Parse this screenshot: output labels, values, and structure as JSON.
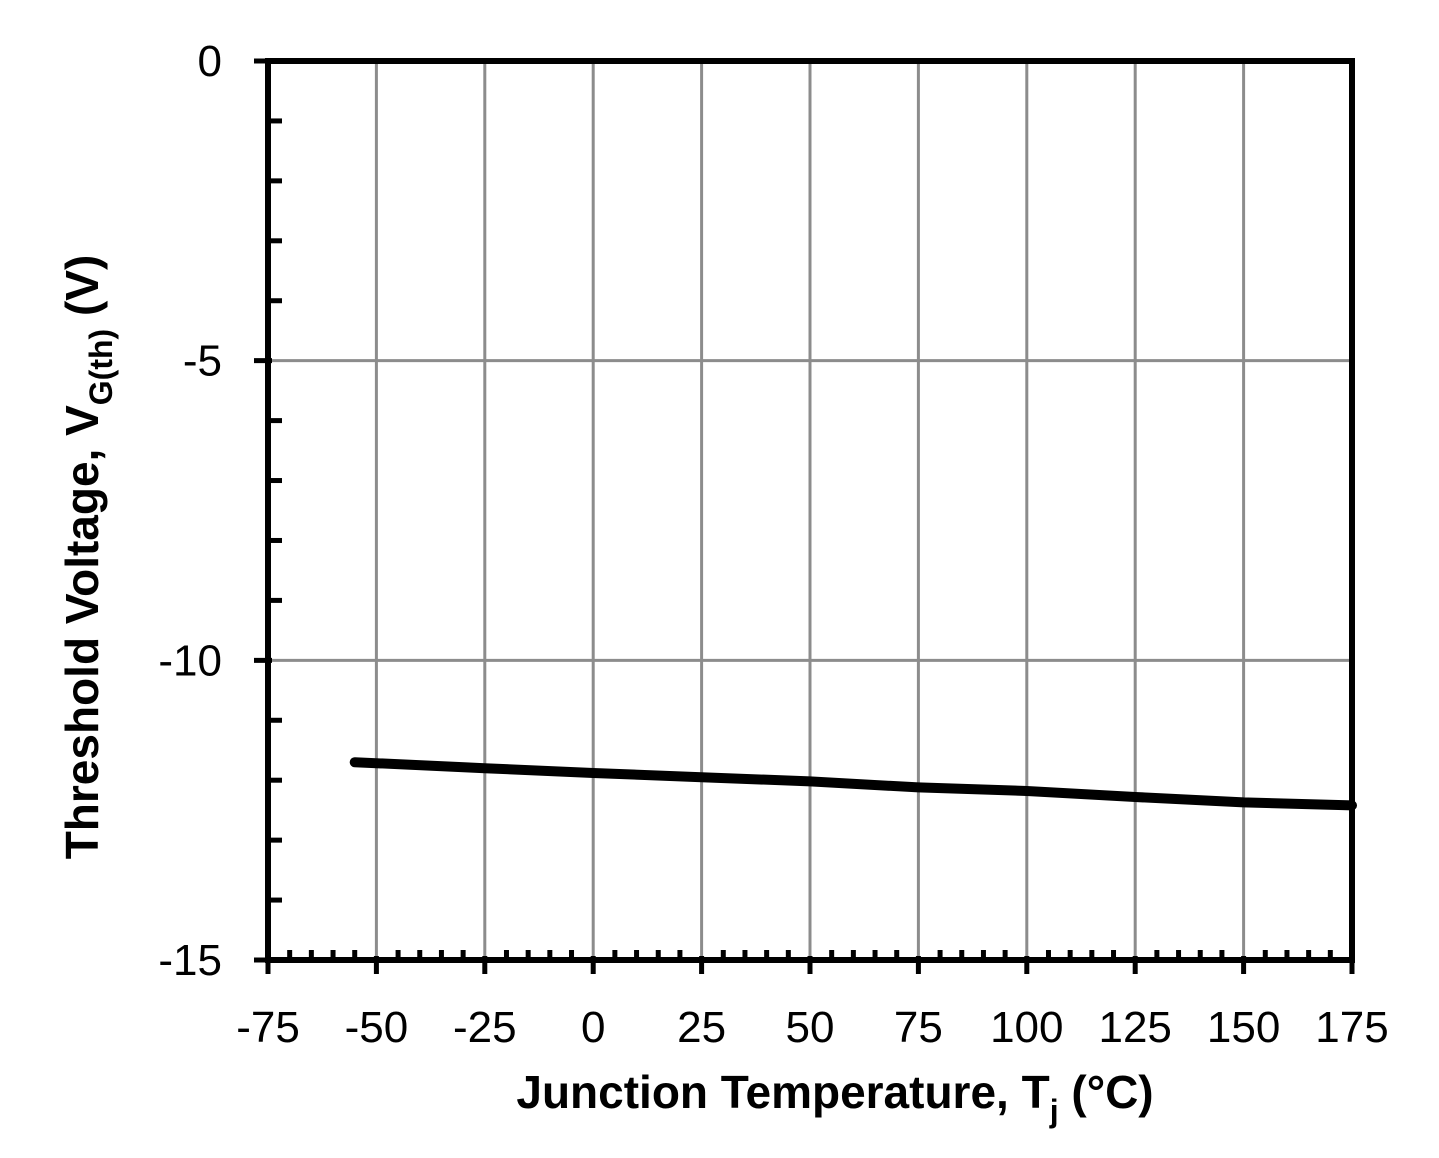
{
  "chart_data": {
    "type": "line",
    "title": "",
    "xlabel": {
      "main": "Junction Temperature, T",
      "sub": "j",
      "suffix": " (°C)"
    },
    "ylabel": {
      "main": "Threshold Voltage, V",
      "sub": "G(th)",
      "suffix": " (V)"
    },
    "xlim": [
      -75,
      175
    ],
    "ylim": [
      -15,
      0
    ],
    "xticks": [
      -75,
      -50,
      -25,
      0,
      25,
      50,
      75,
      100,
      125,
      150,
      175
    ],
    "xtick_labels": [
      "-75",
      "-50",
      "-25",
      "0",
      "25",
      "50",
      "75",
      "100",
      "125",
      "150",
      "175"
    ],
    "yticks": [
      -15,
      -10,
      -5,
      0
    ],
    "ytick_labels": [
      "-15",
      "-10",
      "-5",
      "0"
    ],
    "grid": true,
    "line_color": "#000000",
    "grid_color": "#8c8c8c",
    "series": [
      {
        "x": [
          -55,
          -25,
          0,
          25,
          50,
          75,
          100,
          125,
          150,
          175
        ],
        "values": [
          -11.7,
          -11.8,
          -11.88,
          -11.95,
          -12.02,
          -12.12,
          -12.18,
          -12.28,
          -12.37,
          -12.42
        ]
      }
    ]
  }
}
